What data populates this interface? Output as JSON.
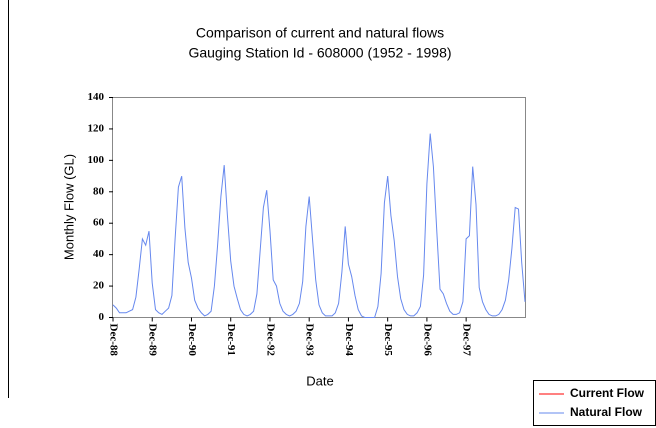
{
  "chart_data": {
    "type": "line",
    "title": "Comparison of current and natural flows",
    "subtitle": "Gauging Station Id - 608000 (1952 - 1998)",
    "x_label": "Date",
    "y_label": "Monthly Flow (GL)",
    "categories": [
      "Dec-88",
      null,
      null,
      null,
      null,
      null,
      null,
      null,
      null,
      null,
      null,
      null,
      "Dec-89",
      null,
      null,
      null,
      null,
      null,
      null,
      null,
      null,
      null,
      null,
      null,
      "Dec-90",
      null,
      null,
      null,
      null,
      null,
      null,
      null,
      null,
      null,
      null,
      null,
      "Dec-91",
      null,
      null,
      null,
      null,
      null,
      null,
      null,
      null,
      null,
      null,
      null,
      "Dec-92",
      null,
      null,
      null,
      null,
      null,
      null,
      null,
      null,
      null,
      null,
      null,
      "Dec-93",
      null,
      null,
      null,
      null,
      null,
      null,
      null,
      null,
      null,
      null,
      null,
      "Dec-94",
      null,
      null,
      null,
      null,
      null,
      null,
      null,
      null,
      null,
      null,
      null,
      "Dec-95",
      null,
      null,
      null,
      null,
      null,
      null,
      null,
      null,
      null,
      null,
      null,
      "Dec-96",
      null,
      null,
      null,
      null,
      null,
      null,
      null,
      null,
      null,
      null,
      null,
      "Dec-97",
      null,
      null,
      null,
      null,
      null,
      null,
      null,
      null,
      null,
      null,
      null,
      null,
      null,
      null,
      null,
      null,
      null,
      null
    ],
    "series": [
      {
        "name": "Current Flow",
        "color": "#ff0000",
        "values": [
          null,
          null,
          null,
          null,
          null,
          null,
          null,
          null,
          null,
          null,
          null,
          null,
          null,
          null,
          null,
          null,
          null,
          null,
          null,
          null,
          null,
          null,
          null,
          null,
          null,
          null,
          null,
          null,
          null,
          null,
          null,
          null,
          null,
          null,
          null,
          null,
          null,
          null,
          null,
          null,
          null,
          null,
          null,
          null,
          null,
          null,
          null,
          null,
          null,
          null,
          null,
          null,
          null,
          null,
          null,
          null,
          null,
          null,
          null,
          null,
          null,
          null,
          null,
          null,
          null,
          null,
          null,
          null,
          null,
          null,
          null,
          null,
          null,
          null,
          null,
          null,
          null,
          null,
          null,
          null,
          null,
          null,
          null,
          null,
          null,
          null,
          null,
          null,
          null,
          null,
          null,
          null,
          null,
          null,
          null,
          null,
          null,
          null,
          null,
          null,
          null,
          null,
          null,
          null,
          null,
          null,
          null,
          null,
          null,
          null,
          null,
          null,
          null,
          null,
          null,
          null,
          null,
          null,
          null,
          null,
          null,
          null,
          null,
          null,
          null,
          null,
          null
        ]
      },
      {
        "name": "Natural Flow",
        "color": "#6688ee",
        "values": [
          8,
          6,
          3,
          3,
          3,
          4,
          5,
          13,
          31,
          50,
          46,
          55,
          22,
          5,
          3,
          2,
          4,
          6,
          14,
          50,
          83,
          90,
          57,
          35,
          25,
          11,
          6,
          3,
          1,
          2,
          4,
          20,
          46,
          77,
          97,
          65,
          36,
          20,
          12,
          5,
          2,
          1,
          2,
          4,
          15,
          42,
          70,
          81,
          55,
          24,
          20,
          9,
          4,
          2,
          1,
          2,
          4,
          9,
          23,
          58,
          77,
          50,
          24,
          8,
          3,
          1,
          1,
          1,
          3,
          9,
          29,
          58,
          34,
          26,
          14,
          5,
          1,
          0,
          0,
          0,
          0,
          7,
          28,
          73,
          90,
          65,
          49,
          26,
          12,
          5,
          2,
          1,
          1,
          3,
          7,
          27,
          85,
          117,
          96,
          56,
          18,
          15,
          9,
          4,
          2,
          2,
          3,
          10,
          50,
          52,
          96,
          72,
          19,
          10,
          5,
          2,
          1,
          1,
          2,
          5,
          11,
          24,
          44,
          70,
          69,
          35,
          10
        ]
      }
    ],
    "ylim": [
      0,
      140
    ],
    "yticks": [
      0,
      20,
      40,
      60,
      80,
      100,
      120,
      140
    ],
    "grid": false
  }
}
